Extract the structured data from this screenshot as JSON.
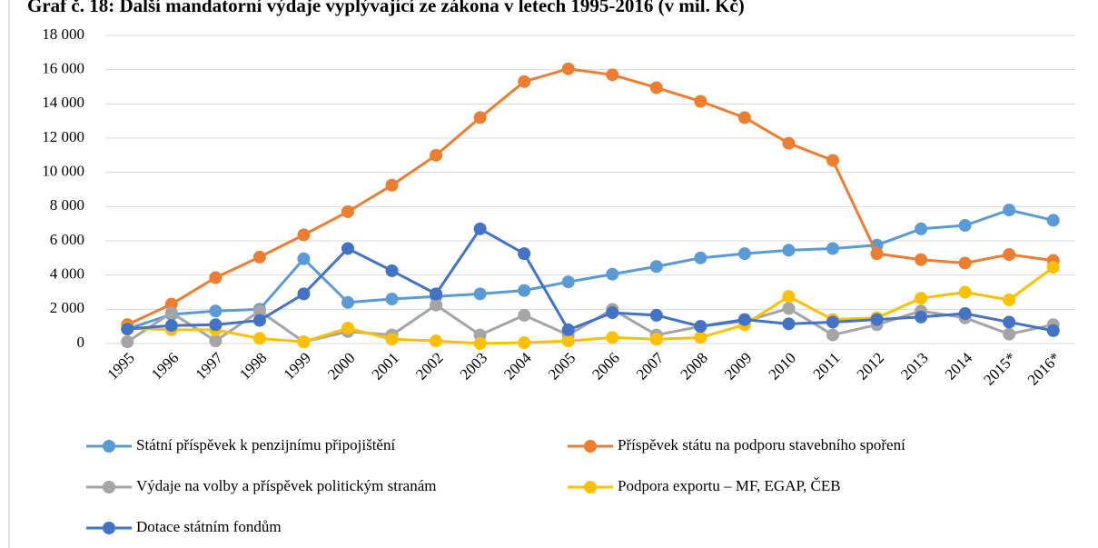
{
  "chart_data": {
    "type": "line",
    "title": "Graf č. 18: Další mandatorní výdaje vyplývající ze zákona v letech 1995-2016 (v mil. Kč)",
    "categories": [
      "1995",
      "1996",
      "1997",
      "1998",
      "1999",
      "2000",
      "2001",
      "2002",
      "2003",
      "2004",
      "2005",
      "2006",
      "2007",
      "2008",
      "2009",
      "2010",
      "2011",
      "2012",
      "2013",
      "2014",
      "2015*",
      "2016*"
    ],
    "series": [
      {
        "name": "Státní příspěvek k penzijnímu připojištění",
        "color": "#5b9bd5",
        "values": [
          850,
          1700,
          1900,
          2000,
          4950,
          2400,
          2600,
          2750,
          2900,
          3100,
          3600,
          4050,
          4500,
          5000,
          5250,
          5450,
          5550,
          5750,
          6700,
          6900,
          7800,
          7200
        ]
      },
      {
        "name": "Příspěvek státu na podporu stavebního spoření",
        "color": "#ed7d31",
        "values": [
          1100,
          2300,
          3850,
          5050,
          6350,
          7700,
          9250,
          11000,
          13200,
          15300,
          16050,
          15700,
          14950,
          14150,
          13200,
          11700,
          10700,
          5250,
          4900,
          4700,
          5200,
          4850
        ]
      },
      {
        "name": "Výdaje na volby a příspěvek politickým stranám",
        "color": "#a5a5a5",
        "values": [
          100,
          1800,
          150,
          1900,
          100,
          700,
          500,
          2250,
          500,
          1650,
          500,
          2000,
          500,
          1000,
          1300,
          2050,
          500,
          1100,
          1900,
          1500,
          550,
          1100
        ]
      },
      {
        "name": "Podpora exportu – MF, EGAP, ČEB",
        "color": "#ffc000",
        "values": [
          900,
          800,
          800,
          300,
          100,
          900,
          250,
          150,
          0,
          50,
          150,
          350,
          250,
          350,
          1100,
          2750,
          1400,
          1500,
          2650,
          3000,
          2550,
          4450
        ]
      },
      {
        "name": "Dotace státním fondům",
        "color": "#4472c4",
        "values": [
          850,
          1050,
          1100,
          1350,
          2900,
          5550,
          4250,
          2900,
          6700,
          5250,
          800,
          1800,
          1650,
          1000,
          1400,
          1150,
          1250,
          1400,
          1550,
          1750,
          1250,
          750
        ]
      }
    ],
    "ylim": [
      0,
      18000
    ],
    "yticks": [
      {
        "value": 0,
        "label": "0"
      },
      {
        "value": 2000,
        "label": "2 000"
      },
      {
        "value": 4000,
        "label": "4 000"
      },
      {
        "value": 6000,
        "label": "6 000"
      },
      {
        "value": 8000,
        "label": "8 000"
      },
      {
        "value": 10000,
        "label": "10 000"
      },
      {
        "value": 12000,
        "label": "12 000"
      },
      {
        "value": 14000,
        "label": "14 000"
      },
      {
        "value": 16000,
        "label": "16 000"
      },
      {
        "value": 18000,
        "label": "18 000"
      }
    ],
    "grid": true,
    "legend": "bottom"
  }
}
